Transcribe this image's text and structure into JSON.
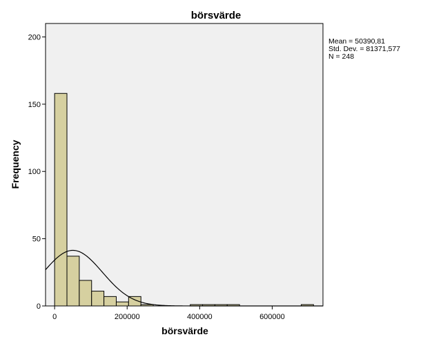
{
  "chart_data": {
    "type": "bar",
    "title": "börsvärde",
    "xlabel": "börsvärde",
    "ylabel": "Frequency",
    "xlim": [
      -25000,
      740000
    ],
    "ylim": [
      0,
      210
    ],
    "bin_width": 34000,
    "x_ticks": [
      0,
      200000,
      400000,
      600000
    ],
    "x_tick_labels": [
      "0",
      "200000",
      "400000",
      "600000"
    ],
    "y_ticks": [
      0,
      50,
      100,
      150,
      200
    ],
    "y_tick_labels": [
      "0",
      "50",
      "100",
      "150",
      "200"
    ],
    "bins": [
      {
        "start": 0,
        "end": 34000,
        "count": 158
      },
      {
        "start": 34000,
        "end": 68000,
        "count": 37
      },
      {
        "start": 68000,
        "end": 102000,
        "count": 19
      },
      {
        "start": 102000,
        "end": 136000,
        "count": 11
      },
      {
        "start": 136000,
        "end": 170000,
        "count": 7
      },
      {
        "start": 170000,
        "end": 204000,
        "count": 3
      },
      {
        "start": 204000,
        "end": 238000,
        "count": 7
      },
      {
        "start": 238000,
        "end": 272000,
        "count": 1
      },
      {
        "start": 374000,
        "end": 408000,
        "count": 1
      },
      {
        "start": 408000,
        "end": 442000,
        "count": 1
      },
      {
        "start": 442000,
        "end": 476000,
        "count": 1
      },
      {
        "start": 476000,
        "end": 510000,
        "count": 1
      },
      {
        "start": 680000,
        "end": 714000,
        "count": 1
      }
    ],
    "normal_curve": {
      "mean": 50390.81,
      "sd": 81371.577,
      "n": 248
    },
    "stats": [
      "Mean = 50390,81",
      "Std. Dev. = 81371,577",
      "N = 248"
    ],
    "grid": false,
    "legend": "none",
    "colors": {
      "bar_fill": "#d6d0a0",
      "bar_stroke": "#000000",
      "plot_background": "#f0f0f0",
      "curve": "#000000"
    }
  }
}
